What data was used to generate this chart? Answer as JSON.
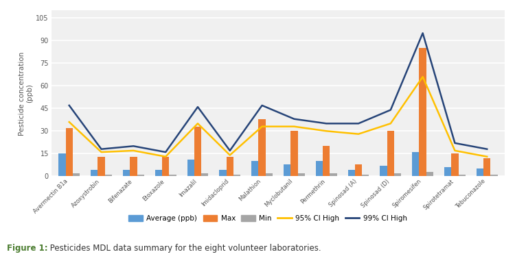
{
  "categories": [
    "Avermectin B1a",
    "Azoxystrobin",
    "Bifenazate",
    "Etoxazole",
    "Imazalil",
    "Imidacloprid",
    "Malathion",
    "Myclobutanil",
    "Permethrin",
    "Spinosad (A)",
    "Spinosad (D)",
    "Spiromesifen",
    "Spirotetramat",
    "Tebuconazole"
  ],
  "average": [
    15,
    4,
    4,
    4,
    11,
    4,
    10,
    8,
    10,
    4,
    7,
    16,
    6,
    5
  ],
  "max": [
    32,
    13,
    13,
    13,
    33,
    13,
    38,
    30,
    20,
    8,
    30,
    85,
    15,
    12
  ],
  "min": [
    2,
    1,
    1,
    1,
    2,
    1,
    2,
    2,
    2,
    1,
    2,
    3,
    1,
    1
  ],
  "ci95": [
    36,
    16,
    17,
    13,
    35,
    14,
    33,
    33,
    30,
    28,
    35,
    66,
    17,
    13
  ],
  "ci99": [
    47,
    18,
    20,
    16,
    46,
    17,
    47,
    38,
    35,
    35,
    44,
    95,
    22,
    18
  ],
  "color_avg": "#5b9bd5",
  "color_max": "#ed7d31",
  "color_min": "#a5a5a5",
  "color_ci95": "#ffc000",
  "color_ci99": "#264478",
  "bar_width": 0.22,
  "ylabel": "Pesticide concentration\n(ppb)",
  "yticks": [
    0,
    15,
    30,
    45,
    60,
    75,
    90,
    105
  ],
  "ylim": [
    0,
    110
  ],
  "chart_bg": "#f0f0f0",
  "fig_bg": "#ffffff",
  "caption_bg": "#e8f5e0",
  "caption_line_color": "#5a8a3c",
  "caption_bold_color": "#4a7c2f",
  "caption_normal_color": "#333333",
  "caption_bold_text": "Figure 1:",
  "caption_normal_text": " Pesticides MDL data summary for the eight volunteer laboratories."
}
